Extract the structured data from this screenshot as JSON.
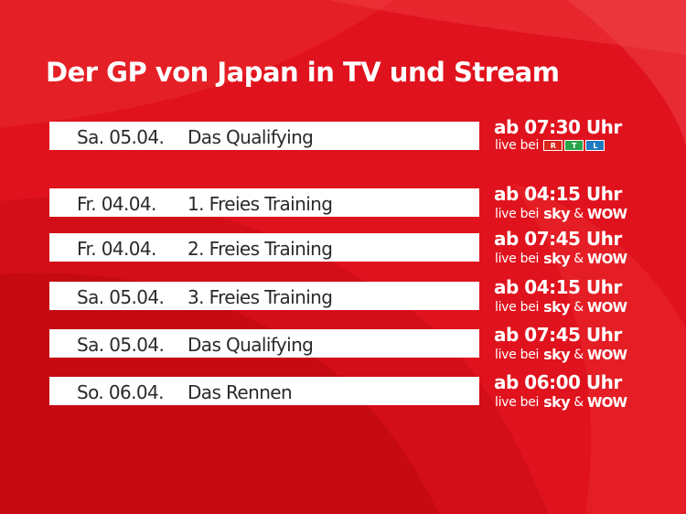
{
  "title": "Der GP von Japan in TV und Stream",
  "colors": {
    "background": "#e0121d",
    "bar": "#ffffff",
    "bar_text": "#2a2a2a",
    "rtl_1": "#d9251b",
    "rtl_2": "#27a548",
    "rtl_3": "#1e7bc1"
  },
  "rows": [
    {
      "date": "Sa. 05.04.",
      "session": "Das Qualifying",
      "time": "ab 07:30 Uhr",
      "live": "live bei",
      "brand": "rtl",
      "rtl_letters": [
        "R",
        "T",
        "L"
      ]
    },
    {
      "date": "Fr.  04.04.",
      "session": "1. Freies Training",
      "time": "ab 04:15 Uhr",
      "live": "live bei",
      "brand": "sky-wow",
      "sky": "sky",
      "amp": "&",
      "wow": "WOW"
    },
    {
      "date": "Fr.  04.04.",
      "session": "2. Freies Training",
      "time": "ab 07:45 Uhr",
      "live": "live bei",
      "brand": "sky-wow",
      "sky": "sky",
      "amp": "&",
      "wow": "WOW"
    },
    {
      "date": "Sa. 05.04.",
      "session": "3. Freies Training",
      "time": "ab 04:15 Uhr",
      "live": "live bei",
      "brand": "sky-wow",
      "sky": "sky",
      "amp": "&",
      "wow": "WOW"
    },
    {
      "date": "Sa. 05.04.",
      "session": "Das Qualifying",
      "time": "ab 07:45 Uhr",
      "live": "live bei",
      "brand": "sky-wow",
      "sky": "sky",
      "amp": "&",
      "wow": "WOW"
    },
    {
      "date": "So. 06.04.",
      "session": "Das Rennen",
      "time": "ab 06:00 Uhr",
      "live": "live bei",
      "brand": "sky-wow",
      "sky": "sky",
      "amp": "&",
      "wow": "WOW"
    }
  ]
}
